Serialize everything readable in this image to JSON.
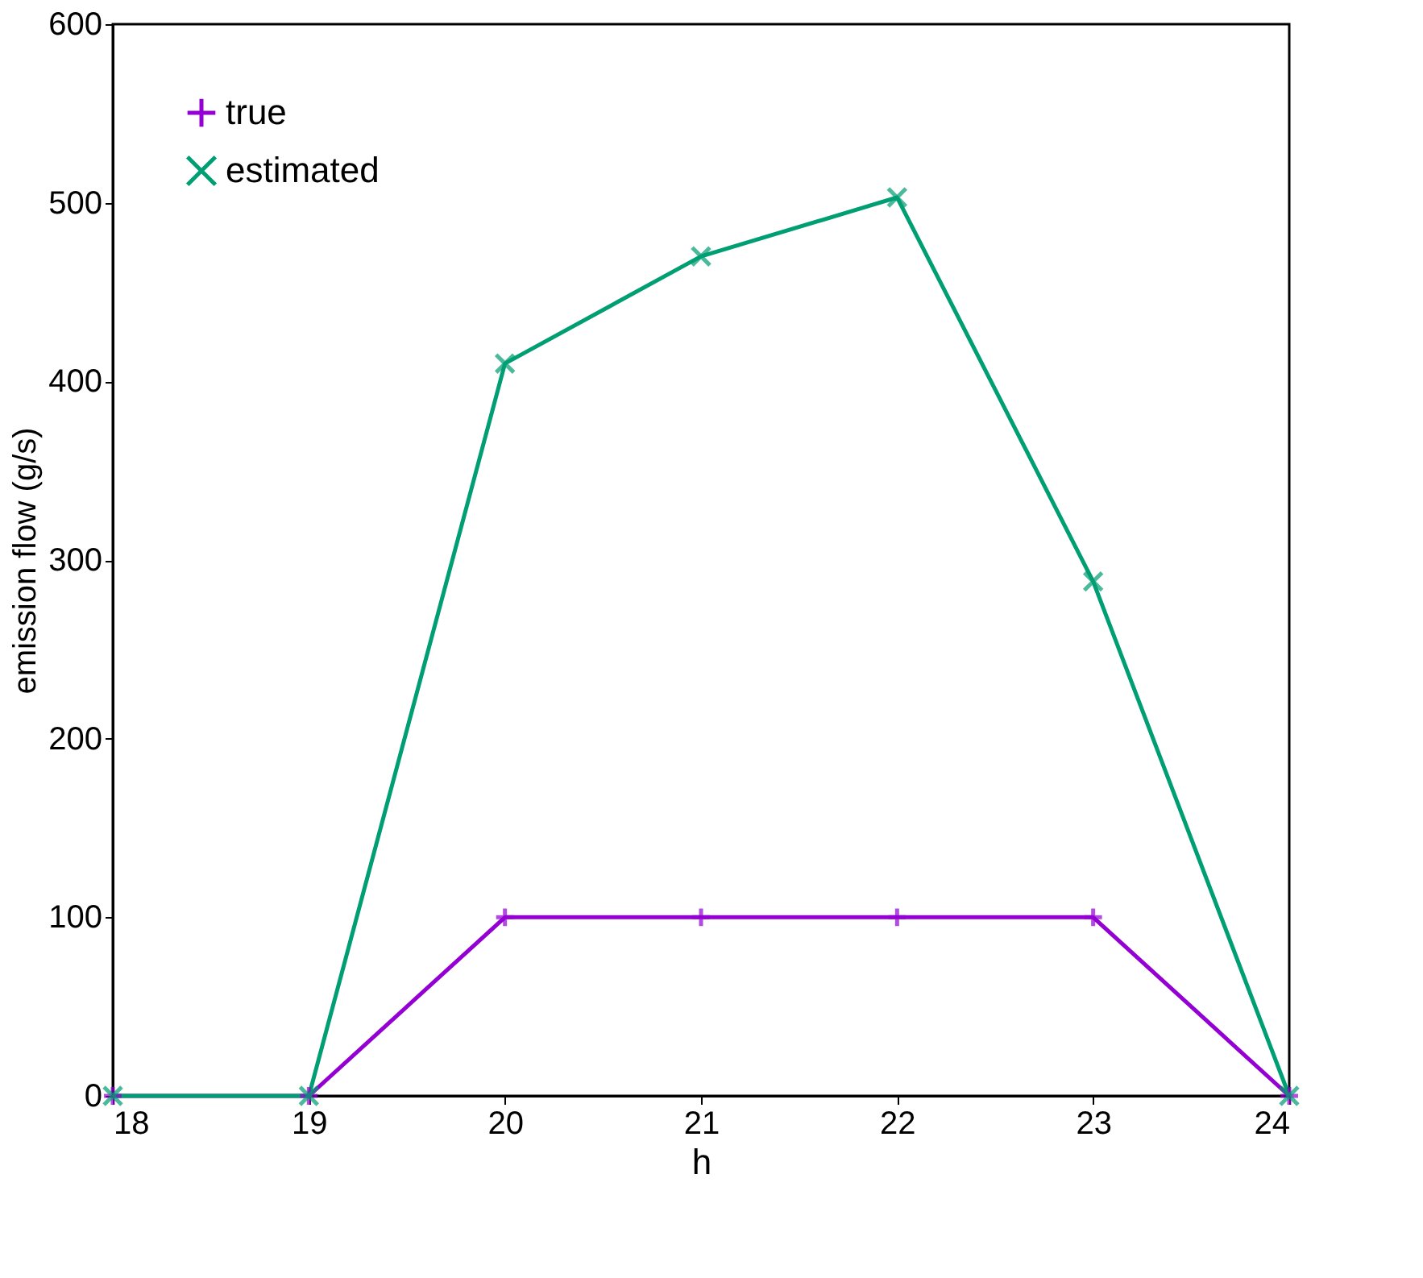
{
  "chart_data": {
    "type": "line",
    "xlabel": "h",
    "ylabel": "emission flow (g/s)",
    "x": [
      18,
      19,
      20,
      21,
      22,
      23,
      24
    ],
    "series": [
      {
        "name": "true",
        "color": "#9400d3",
        "marker": "cross",
        "values": [
          0,
          0,
          100,
          100,
          100,
          100,
          0
        ]
      },
      {
        "name": "estimated",
        "color": "#009e73",
        "marker": "x",
        "values": [
          0,
          0,
          410,
          470,
          503,
          288,
          0
        ]
      }
    ],
    "xlim": [
      18,
      24
    ],
    "xticks": [
      18,
      19,
      20,
      21,
      22,
      23,
      24
    ],
    "ylim": [
      0,
      600
    ],
    "yticks": [
      0,
      100,
      200,
      300,
      400,
      500,
      600
    ],
    "grid": false,
    "legend": "top left",
    "line_style": "solid"
  }
}
